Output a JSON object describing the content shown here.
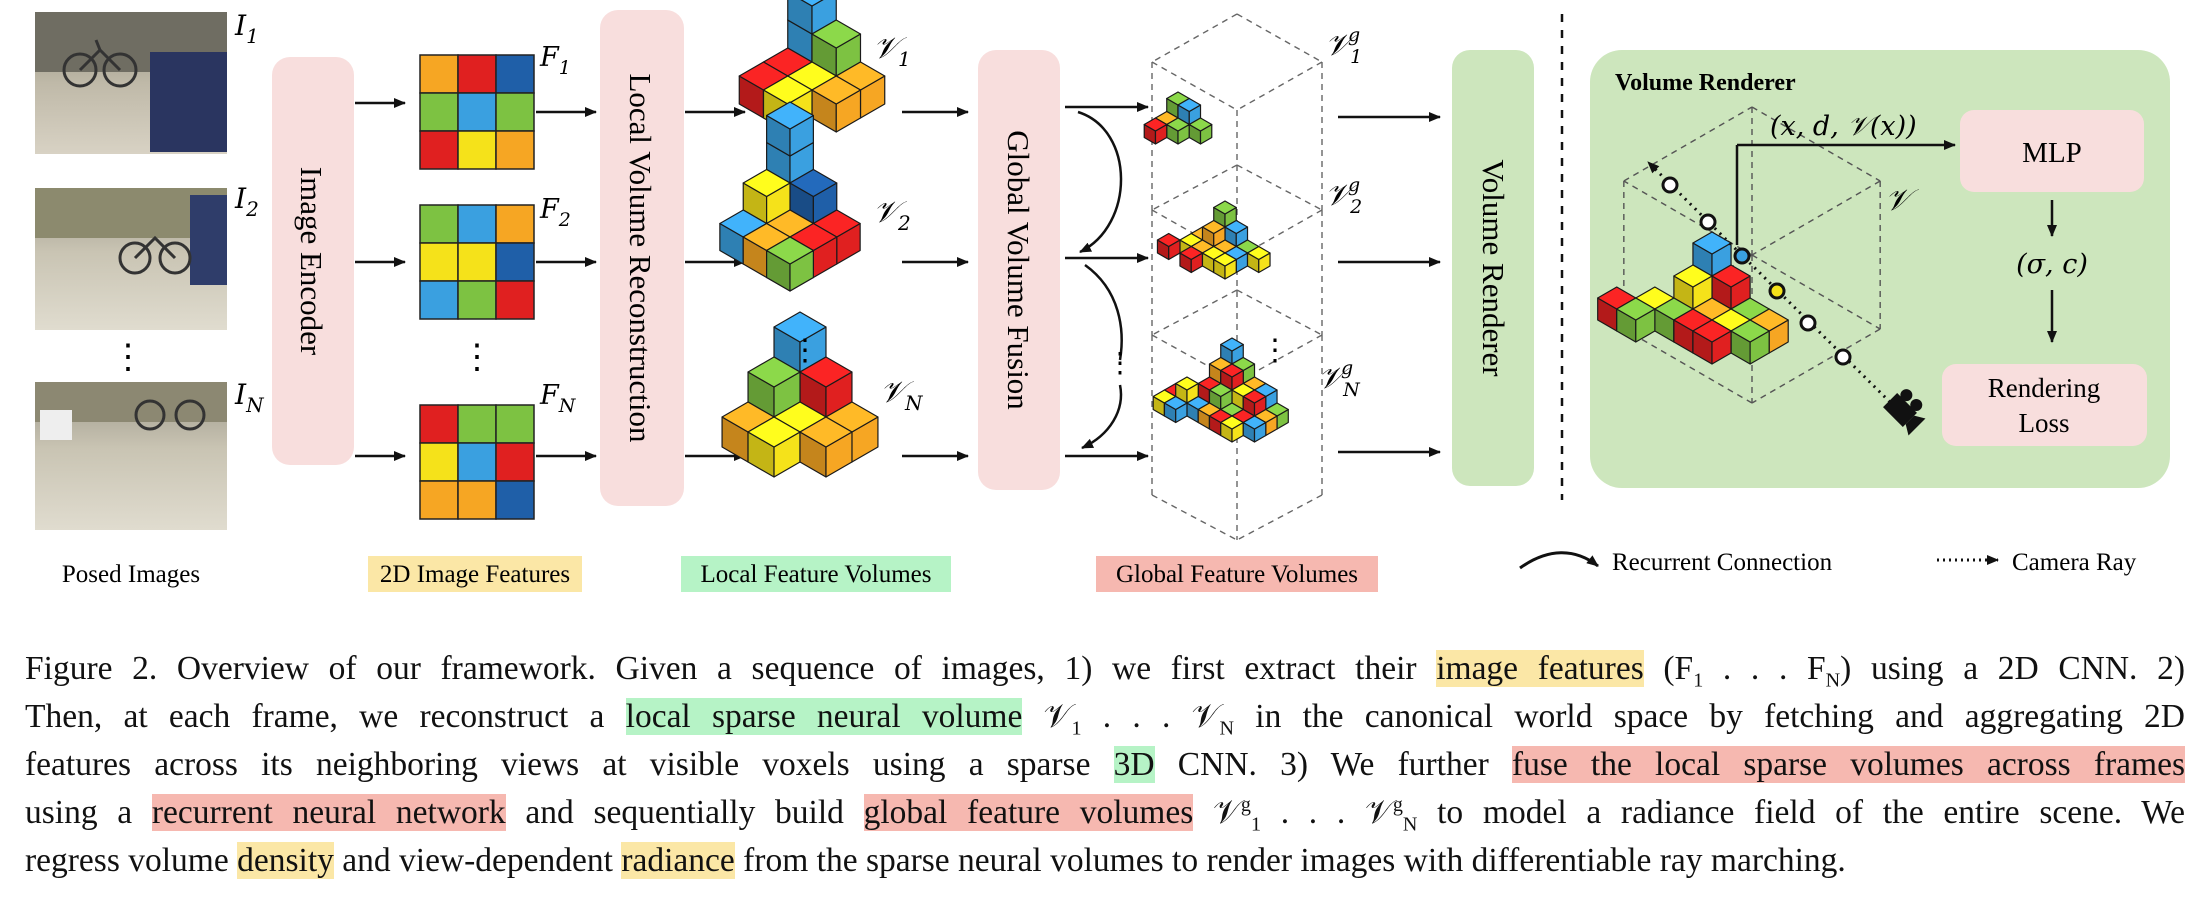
{
  "colors": {
    "pink_box": "#f8dedd",
    "green_box": "#cde6bd",
    "renderer_panel": "#cde6bd",
    "mlp_box": "#f8dedd",
    "hl_yellow": "#fbe7a6",
    "hl_green": "#b6f3c6",
    "hl_red": "#f6b8b0",
    "voxel_red": "#e02020",
    "voxel_green": "#7dc242",
    "voxel_blue": "#3aa0e0",
    "voxel_yellow": "#f5e21a",
    "voxel_orange": "#f6a623",
    "voxel_navy": "#1f5fa8"
  },
  "images": {
    "labels": [
      "I",
      "I",
      "I"
    ],
    "subs": [
      "1",
      "2",
      "N"
    ],
    "dots": "⋮",
    "caption": "Posed Images"
  },
  "encoder": {
    "label": "Image Encoder"
  },
  "features": {
    "labels": [
      "F",
      "F",
      "F"
    ],
    "subs": [
      "1",
      "2",
      "N"
    ],
    "dots": "⋮",
    "caption": "2D Image Features"
  },
  "local_recon": {
    "label": "Local Volume Reconstruction"
  },
  "local_volumes": {
    "symbol": "𝒱",
    "subs": [
      "1",
      "2",
      "N"
    ],
    "dots": "⋮",
    "caption": "Local Feature Volumes"
  },
  "fusion": {
    "label": "Global Volume Fusion"
  },
  "global_volumes": {
    "symbol": "𝒱",
    "sup": "g",
    "subs": [
      "1",
      "2",
      "N"
    ],
    "dots": "⋮",
    "caption": "Global Feature Volumes"
  },
  "renderer_box": {
    "label": "Volume Renderer"
  },
  "renderer_panel": {
    "title": "Volume Renderer",
    "input": "(x, d, 𝒱(x))",
    "volume_symbol": "𝒱",
    "mlp": "MLP",
    "outputs": "(σ, c)",
    "loss_line1": "Rendering",
    "loss_line2": "Loss"
  },
  "legend": {
    "recurrent": "Recurrent Connection",
    "camera": "Camera Ray"
  },
  "caption": {
    "l1_a": "Figure 2. Overview of our framework. Given a sequence of images, 1) we first extract their ",
    "l1_hl": "image features",
    "l1_b": " (F",
    "l1_c": " . . . F",
    "l1_d": ") using a 2D CNN. 2)",
    "l2_a": "Then, at each frame, we reconstruct a ",
    "l2_hl": "local sparse neural volume",
    "l2_b": " 𝒱",
    "l2_c": " . . . 𝒱",
    "l2_d": " in the canonical world space by fetching and aggregating 2D",
    "l3_a": "features across its neighboring views at visible voxels using a sparse ",
    "l3_hl1": "3D",
    "l3_b": " CNN. 3) We further ",
    "l3_hl2": "fuse the local sparse volumes across frames",
    "l4_a": "using a ",
    "l4_hl1": "recurrent neural network",
    "l4_b": " and sequentially build ",
    "l4_hl2": "global feature volumes",
    "l4_c": " 𝒱",
    "l4_d": " . . . 𝒱",
    "l4_e": " to model a radiance field of the entire scene. We",
    "l5_a": "regress volume ",
    "l5_hl1": "density",
    "l5_b": " and view-dependent ",
    "l5_hl2": "radiance",
    "l5_c": " from the sparse neural volumes to render images with differentiable ray marching."
  }
}
